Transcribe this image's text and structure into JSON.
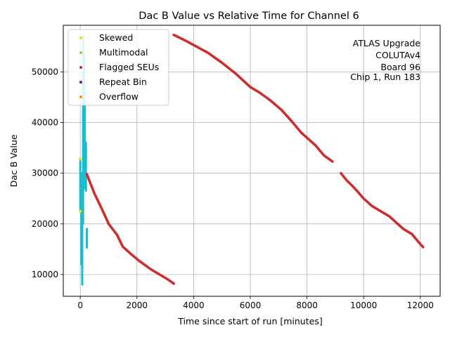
{
  "chart_data": {
    "type": "scatter",
    "title": "Dac B Value vs Relative Time for Channel 6",
    "xlabel": "Time since start of run [minutes]",
    "ylabel": "Dac B Value",
    "xlim": [
      -600,
      12700
    ],
    "ylim": [
      5700,
      59200
    ],
    "x_ticks": [
      0,
      2000,
      4000,
      6000,
      8000,
      10000,
      12000
    ],
    "y_ticks": [
      10000,
      20000,
      30000,
      40000,
      50000
    ],
    "x_tick_labels": [
      "0",
      "2000",
      "4000",
      "6000",
      "8000",
      "10000",
      "12000"
    ],
    "y_tick_labels": [
      "10000",
      "20000",
      "30000",
      "40000",
      "50000"
    ],
    "grid": true,
    "legend_position": "top-left",
    "annotation_lines": [
      "ATLAS Upgrade",
      "COLUTAv4",
      "Board 96",
      "Chip 1, Run 183"
    ],
    "series": [
      {
        "name": "Skewed",
        "color": "#e6e600",
        "points": [
          [
            0,
            22500
          ],
          [
            0,
            32800
          ]
        ]
      },
      {
        "name": "Multimodal",
        "color": "#9acd32",
        "points": [
          [
            100,
            48000
          ]
        ]
      },
      {
        "name": "Flagged SEUs",
        "color": "#cc2f2f",
        "segments": [
          {
            "x": [
              230,
              500,
              800,
              1000,
              1300,
              1500,
              1800,
              2100,
              2500,
              2800,
              3100,
              3300
            ],
            "y": [
              29800,
              26000,
              22500,
              20000,
              17800,
              15500,
              14000,
              12600,
              11000,
              10000,
              9000,
              8200
            ]
          },
          {
            "x": [
              3300,
              3700,
              4100,
              4500,
              5000,
              5500,
              6000,
              6300,
              6700,
              7100,
              7500,
              7800,
              8000,
              8300,
              8600,
              8900
            ],
            "y": [
              57300,
              56200,
              55000,
              53800,
              51800,
              49600,
              47000,
              46000,
              44400,
              42500,
              40000,
              38000,
              37000,
              35500,
              33500,
              32300
            ]
          },
          {
            "x": [
              9200,
              9400,
              9600,
              9800,
              10000,
              10300,
              10600,
              10900,
              11100,
              11400,
              11700,
              12000,
              12100
            ],
            "y": [
              30000,
              28600,
              27500,
              26300,
              25000,
              23500,
              22500,
              21500,
              20500,
              19000,
              18000,
              16000,
              15400
            ]
          }
        ]
      },
      {
        "name": "Repeat Bin",
        "color": "#6a1b9a",
        "points": []
      },
      {
        "name": "Overflow",
        "color": "#ff8c00",
        "points": []
      },
      {
        "name": "",
        "color": "#17becf",
        "bursts": [
          {
            "x": 0,
            "low": 22500,
            "high": 32800
          },
          {
            "x": 40,
            "low": 12000,
            "high": 26500
          },
          {
            "x": 70,
            "low": 8000,
            "high": 30000
          },
          {
            "x": 100,
            "low": 20000,
            "high": 57000
          },
          {
            "x": 130,
            "low": 27000,
            "high": 53500
          },
          {
            "x": 160,
            "low": 30000,
            "high": 45000
          },
          {
            "x": 200,
            "low": 26500,
            "high": 36000
          },
          {
            "x": 230,
            "low": 15300,
            "high": 19000
          }
        ]
      }
    ]
  }
}
